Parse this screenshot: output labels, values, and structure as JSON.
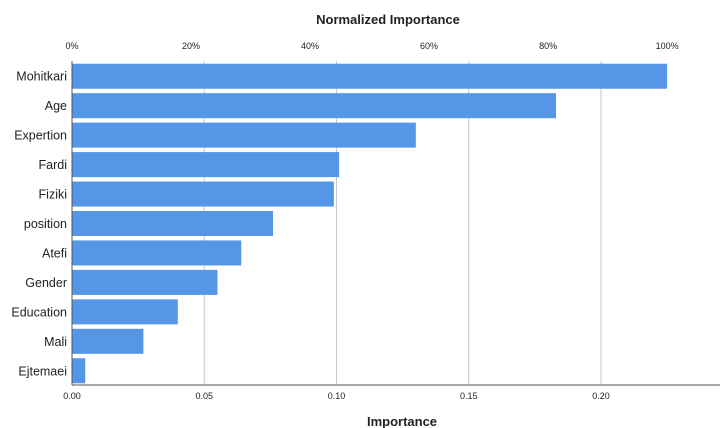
{
  "chart_data": {
    "type": "bar",
    "orientation": "horizontal",
    "top_axis_title": "Normalized Importance",
    "top_axis_ticks": [
      "0%",
      "20%",
      "40%",
      "60%",
      "80%",
      "100%"
    ],
    "xlabel": "Importance",
    "x_ticks": [
      "0.00",
      "0.05",
      "0.10",
      "0.15",
      "0.20"
    ],
    "xlim": [
      0,
      0.245
    ],
    "categories": [
      "Mohitkari",
      "Age",
      "Expertion",
      "Fardi",
      "Fiziki",
      "position",
      "Atefi",
      "Gender",
      "Education",
      "Mali",
      "Ejtemaei"
    ],
    "values": [
      0.225,
      0.183,
      0.13,
      0.101,
      0.099,
      0.076,
      0.064,
      0.055,
      0.04,
      0.027,
      0.005
    ],
    "bar_color": "#5597e6",
    "grid": true
  }
}
